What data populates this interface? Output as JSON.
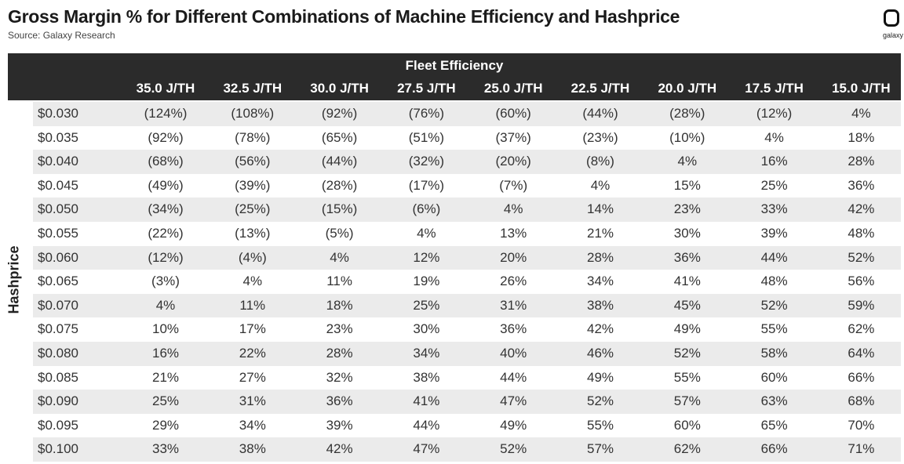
{
  "header": {
    "title": "Gross Margin % for Different Combinations of Machine Efficiency and Hashprice",
    "source": "Source: Galaxy Research",
    "logo": "galaxy"
  },
  "table": {
    "column_group": "Fleet Efficiency",
    "row_axis": "Hashprice",
    "columns": [
      "35.0 J/TH",
      "32.5 J/TH",
      "30.0 J/TH",
      "27.5 J/TH",
      "25.0 J/TH",
      "22.5 J/TH",
      "20.0 J/TH",
      "17.5 J/TH",
      "15.0 J/TH"
    ],
    "rows": [
      [
        "$0.030",
        "(124%)",
        "(108%)",
        "(92%)",
        "(76%)",
        "(60%)",
        "(44%)",
        "(28%)",
        "(12%)",
        "4%"
      ],
      [
        "$0.035",
        "(92%)",
        "(78%)",
        "(65%)",
        "(51%)",
        "(37%)",
        "(23%)",
        "(10%)",
        "4%",
        "18%"
      ],
      [
        "$0.040",
        "(68%)",
        "(56%)",
        "(44%)",
        "(32%)",
        "(20%)",
        "(8%)",
        "4%",
        "16%",
        "28%"
      ],
      [
        "$0.045",
        "(49%)",
        "(39%)",
        "(28%)",
        "(17%)",
        "(7%)",
        "4%",
        "15%",
        "25%",
        "36%"
      ],
      [
        "$0.050",
        "(34%)",
        "(25%)",
        "(15%)",
        "(6%)",
        "4%",
        "14%",
        "23%",
        "33%",
        "42%"
      ],
      [
        "$0.055",
        "(22%)",
        "(13%)",
        "(5%)",
        "4%",
        "13%",
        "21%",
        "30%",
        "39%",
        "48%"
      ],
      [
        "$0.060",
        "(12%)",
        "(4%)",
        "4%",
        "12%",
        "20%",
        "28%",
        "36%",
        "44%",
        "52%"
      ],
      [
        "$0.065",
        "(3%)",
        "4%",
        "11%",
        "19%",
        "26%",
        "34%",
        "41%",
        "48%",
        "56%"
      ],
      [
        "$0.070",
        "4%",
        "11%",
        "18%",
        "25%",
        "31%",
        "38%",
        "45%",
        "52%",
        "59%"
      ],
      [
        "$0.075",
        "10%",
        "17%",
        "23%",
        "30%",
        "36%",
        "42%",
        "49%",
        "55%",
        "62%"
      ],
      [
        "$0.080",
        "16%",
        "22%",
        "28%",
        "34%",
        "40%",
        "46%",
        "52%",
        "58%",
        "64%"
      ],
      [
        "$0.085",
        "21%",
        "27%",
        "32%",
        "38%",
        "44%",
        "49%",
        "55%",
        "60%",
        "66%"
      ],
      [
        "$0.090",
        "25%",
        "31%",
        "36%",
        "41%",
        "47%",
        "52%",
        "57%",
        "63%",
        "68%"
      ],
      [
        "$0.095",
        "29%",
        "34%",
        "39%",
        "44%",
        "49%",
        "55%",
        "60%",
        "65%",
        "70%"
      ],
      [
        "$0.100",
        "33%",
        "38%",
        "42%",
        "47%",
        "52%",
        "57%",
        "62%",
        "66%",
        "71%"
      ]
    ]
  }
}
